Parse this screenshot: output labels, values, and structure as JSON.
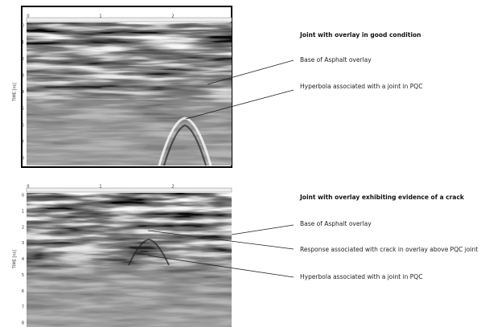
{
  "panels": [
    {
      "title": "Joint with overlay in good condition",
      "x_ticks": [
        "0",
        "1",
        "2"
      ],
      "y_ticks": [
        "0",
        "1",
        "2",
        "3",
        "4",
        "5",
        "6",
        "7",
        "8"
      ],
      "y_label": "TIME [ns]",
      "annotations": [
        "Base of Asphalt overlay",
        "Hyperbola associated with a joint in PQC"
      ]
    },
    {
      "title": "Joint with overlay exhibiting evidence of a crack",
      "x_ticks": [
        "0",
        "1",
        "2"
      ],
      "y_ticks": [
        "0",
        "1",
        "2",
        "3",
        "4",
        "5",
        "6",
        "7",
        "8"
      ],
      "y_label": "TIME [ns]",
      "annotations": [
        "Base of Asphalt overlay",
        "Response associated with crack in overlay above PQC joint",
        "Hyperbola associated with a joint in PQC"
      ]
    }
  ]
}
